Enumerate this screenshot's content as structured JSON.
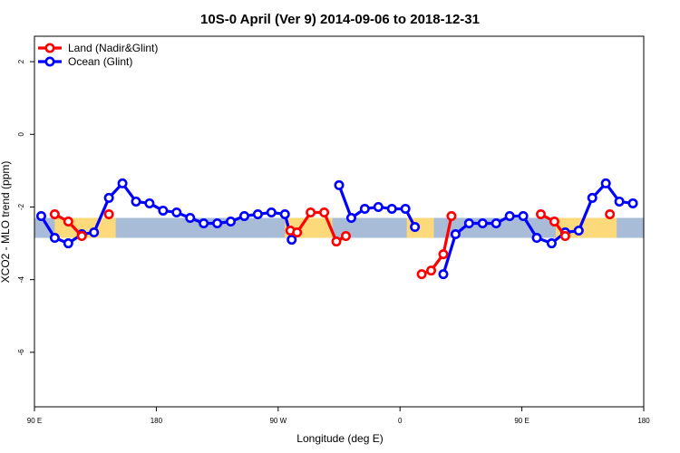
{
  "chart_data": {
    "type": "line",
    "title": "10S-0 April (Ver 9)   2014-09-06 to 2018-12-31",
    "xlabel": "Longitude (deg E)",
    "ylabel": "XCO2 - MLO trend (ppm)",
    "xlim": [
      90,
      540
    ],
    "ylim": [
      -7.5,
      2.7
    ],
    "x_ticks": [
      {
        "value": 90,
        "label": "90 E"
      },
      {
        "value": 180,
        "label": "180"
      },
      {
        "value": 270,
        "label": "90 W"
      },
      {
        "value": 360,
        "label": "0"
      },
      {
        "value": 450,
        "label": "90 E"
      },
      {
        "value": 540,
        "label": "180"
      }
    ],
    "y_ticks": [
      {
        "value": 2,
        "label": "2"
      },
      {
        "value": 0,
        "label": "0"
      },
      {
        "value": -2,
        "label": "-2"
      },
      {
        "value": -4,
        "label": "-4"
      },
      {
        "value": -6,
        "label": "-6"
      }
    ],
    "grid": false,
    "legend": "top-left",
    "band": {
      "y_low": -2.85,
      "y_high": -2.3,
      "color": "#a8bcd8",
      "land_color": "#fcd97a"
    },
    "land_segments": [
      [
        105,
        150
      ],
      [
        275,
        310
      ],
      [
        365,
        385
      ],
      [
        475,
        520
      ]
    ],
    "series": [
      {
        "name": "Land (Nadir&Glint)",
        "color": "#ff0000",
        "segments": [
          [
            [
              105,
              -2.2
            ],
            [
              115,
              -2.4
            ],
            [
              125,
              -2.8
            ]
          ],
          [
            [
              145,
              -2.2
            ]
          ],
          [
            [
              279,
              -2.65
            ],
            [
              284,
              -2.7
            ],
            [
              294,
              -2.15
            ],
            [
              304,
              -2.15
            ],
            [
              313,
              -2.95
            ],
            [
              320,
              -2.8
            ]
          ],
          [
            [
              376,
              -3.85
            ],
            [
              383,
              -3.75
            ],
            [
              392,
              -3.3
            ],
            [
              398,
              -2.25
            ]
          ],
          [
            [
              464,
              -2.2
            ],
            [
              474,
              -2.4
            ],
            [
              482,
              -2.8
            ]
          ],
          [
            [
              515,
              -2.2
            ]
          ]
        ]
      },
      {
        "name": "Ocean (Glint)",
        "color": "#0000ff",
        "segments": [
          [
            [
              95,
              -2.25
            ],
            [
              105,
              -2.85
            ],
            [
              115,
              -3.0
            ],
            [
              125,
              -2.75
            ],
            [
              134,
              -2.7
            ],
            [
              145,
              -1.75
            ],
            [
              155,
              -1.35
            ],
            [
              165,
              -1.85
            ],
            [
              175,
              -1.9
            ],
            [
              185,
              -2.1
            ],
            [
              195,
              -2.15
            ],
            [
              205,
              -2.3
            ],
            [
              215,
              -2.45
            ],
            [
              225,
              -2.45
            ],
            [
              235,
              -2.4
            ],
            [
              245,
              -2.25
            ],
            [
              255,
              -2.2
            ],
            [
              265,
              -2.15
            ],
            [
              275,
              -2.2
            ],
            [
              280,
              -2.9
            ]
          ],
          [
            [
              315,
              -1.4
            ],
            [
              324,
              -2.3
            ],
            [
              334,
              -2.05
            ],
            [
              344,
              -2.0
            ],
            [
              354,
              -2.05
            ],
            [
              364,
              -2.05
            ],
            [
              371,
              -2.55
            ]
          ],
          [
            [
              392,
              -3.85
            ],
            [
              401,
              -2.75
            ],
            [
              411,
              -2.45
            ],
            [
              421,
              -2.45
            ],
            [
              431,
              -2.45
            ],
            [
              441,
              -2.25
            ],
            [
              451,
              -2.25
            ],
            [
              461,
              -2.85
            ],
            [
              472,
              -3.0
            ],
            [
              482,
              -2.7
            ],
            [
              492,
              -2.65
            ],
            [
              502,
              -1.75
            ],
            [
              512,
              -1.35
            ],
            [
              522,
              -1.85
            ],
            [
              532,
              -1.9
            ]
          ]
        ]
      }
    ]
  }
}
